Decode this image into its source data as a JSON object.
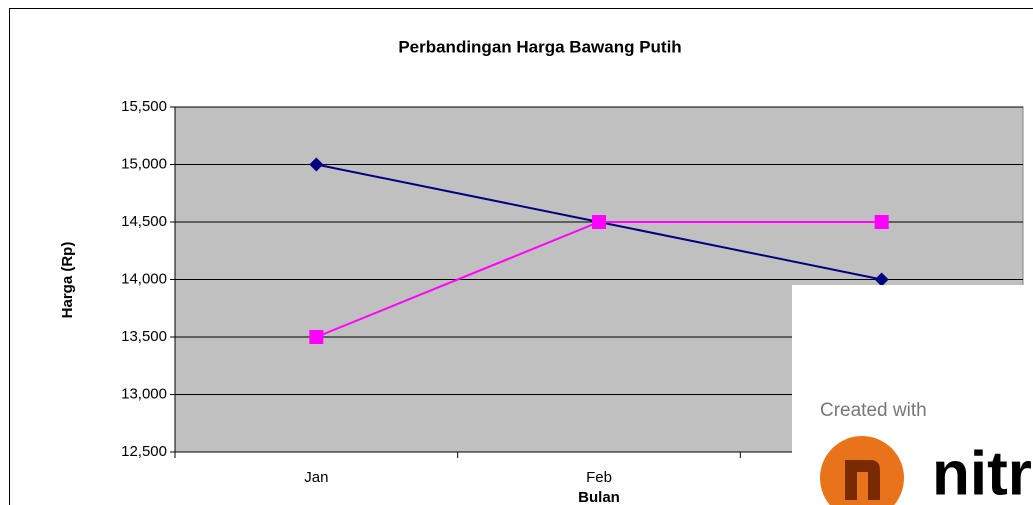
{
  "chart_data": {
    "type": "line",
    "title": "Perbandingan Harga Bawang Putih",
    "x_label": "Bulan",
    "y_label": "Harga (Rp)",
    "categories": [
      "Jan",
      "Feb",
      null
    ],
    "series": [
      {
        "color": "#000080",
        "marker": "diamond",
        "values": [
          15000,
          14500,
          14000
        ]
      },
      {
        "color": "#ff00ff",
        "marker": "square",
        "values": [
          13500,
          14500,
          14500
        ]
      }
    ],
    "ylim": [
      12500,
      15500
    ],
    "yticks": [
      {
        "value": 12500,
        "label": "12,500"
      },
      {
        "value": 13000,
        "label": "13,000"
      },
      {
        "value": 13500,
        "label": "13,500"
      },
      {
        "value": 14000,
        "label": "14,000"
      },
      {
        "value": 14500,
        "label": "14,500"
      },
      {
        "value": 15000,
        "label": "15,000"
      },
      {
        "value": 15500,
        "label": "15,500"
      }
    ],
    "grid": true,
    "plot_background": "#c0c0c0"
  },
  "watermark": {
    "text": "Created with",
    "brand": "nitro"
  }
}
